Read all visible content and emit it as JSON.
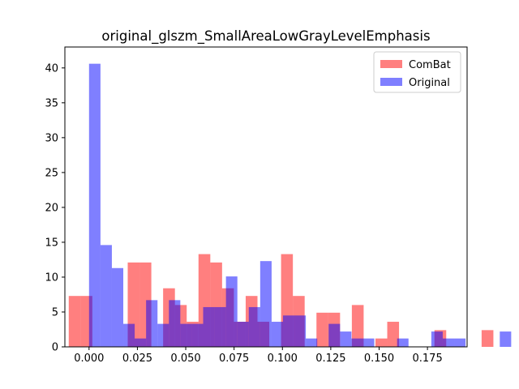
{
  "chart_data": {
    "type": "bar",
    "title": "original_glszm_SmallAreaLowGrayLevelEmphasis",
    "xlabel": "",
    "ylabel": "",
    "xlim": [
      -0.0125,
      0.1955
    ],
    "ylim": [
      0,
      43
    ],
    "xticks": [
      0.0,
      0.025,
      0.05,
      0.075,
      0.1,
      0.125,
      0.15,
      0.175
    ],
    "xtick_labels": [
      "0.000",
      "0.025",
      "0.050",
      "0.075",
      "0.100",
      "0.125",
      "0.150",
      "0.175"
    ],
    "yticks": [
      0,
      5,
      10,
      15,
      20,
      25,
      30,
      35,
      40
    ],
    "ytick_labels": [
      "0",
      "5",
      "10",
      "15",
      "20",
      "25",
      "30",
      "35",
      "40"
    ],
    "legend": {
      "position": "upper right"
    },
    "grid": false,
    "series": [
      {
        "name": "ComBat",
        "color": "#ff0000",
        "alpha": 0.5,
        "bin_start": -0.0105,
        "bin_width": 0.0061,
        "values": [
          7.3,
          7.3,
          0,
          0,
          0,
          12.1,
          12.1,
          0,
          8.4,
          6.0,
          3.6,
          13.3,
          12.1,
          8.4,
          3.6,
          7.3,
          3.6,
          0,
          13.3,
          7.3,
          0,
          4.9,
          4.9,
          0,
          6.0,
          0,
          1.2,
          3.6,
          0,
          0,
          0,
          2.4,
          0,
          0,
          0,
          2.4,
          0,
          0,
          0,
          0,
          0
        ]
      },
      {
        "name": "Original",
        "color": "#0000ff",
        "alpha": 0.5,
        "bin_start": 0.0,
        "bin_width": 0.0059,
        "values": [
          40.6,
          14.6,
          11.3,
          3.3,
          1.2,
          6.7,
          3.3,
          6.7,
          3.3,
          3.3,
          5.7,
          5.7,
          10.1,
          3.6,
          5.7,
          12.3,
          3.6,
          4.5,
          4.5,
          1.2,
          0,
          3.3,
          2.2,
          1.2,
          1.2,
          0,
          0,
          1.2,
          0,
          0,
          2.2,
          1.2,
          1.2,
          0,
          0,
          0,
          2.2
        ]
      }
    ]
  }
}
